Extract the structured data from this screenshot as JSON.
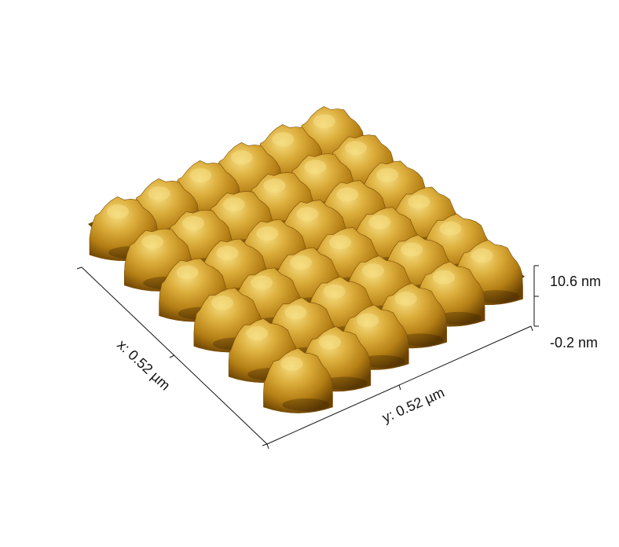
{
  "axes": {
    "x_label": "x: 0.52 µm",
    "y_label": "y: 0.52 µm",
    "z_max_label": "10.6 nm",
    "z_min_label": "-0.2 nm"
  },
  "surface": {
    "lattice_rows": 6,
    "lattice_cols": 6,
    "colors": {
      "shadow": "#3a2300",
      "dark": "#7a4d06",
      "mid": "#b47e14",
      "light": "#dcae3c",
      "highlight": "#f6df84"
    }
  }
}
